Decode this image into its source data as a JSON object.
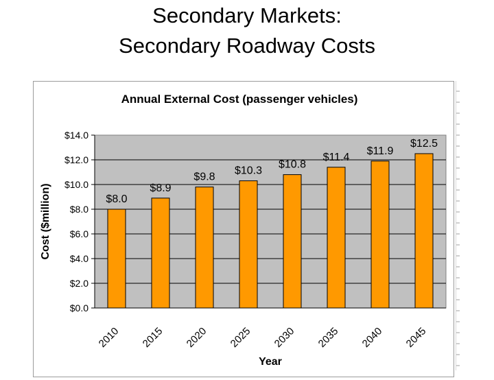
{
  "slide": {
    "title_line1": "Secondary Markets:",
    "title_line2": "Secondary Roadway Costs"
  },
  "chart_data": {
    "type": "bar",
    "title": "Annual External Cost (passenger vehicles)",
    "xlabel": "Year",
    "ylabel": "Cost ($million)",
    "categories": [
      "2010",
      "2015",
      "2020",
      "2025",
      "2030",
      "2035",
      "2040",
      "2045"
    ],
    "values": [
      8.0,
      8.9,
      9.8,
      10.3,
      10.8,
      11.4,
      11.9,
      12.5
    ],
    "data_labels": [
      "$8.0",
      "$8.9",
      "$9.8",
      "$10.3",
      "$10.8",
      "$11.4",
      "$11.9",
      "$12.5"
    ],
    "ylim": [
      0,
      14
    ],
    "yticks": [
      0,
      2,
      4,
      6,
      8,
      10,
      12,
      14
    ],
    "ytick_labels": [
      "$0.0",
      "$2.0",
      "$4.0",
      "$6.0",
      "$8.0",
      "$10.0",
      "$12.0",
      "$14.0"
    ],
    "grid": true,
    "legend": "none",
    "colors": {
      "bar": "#FF9900",
      "bar_edge": "#000000",
      "plot_bg": "#C0C0C0",
      "gridline": "#000000"
    }
  }
}
